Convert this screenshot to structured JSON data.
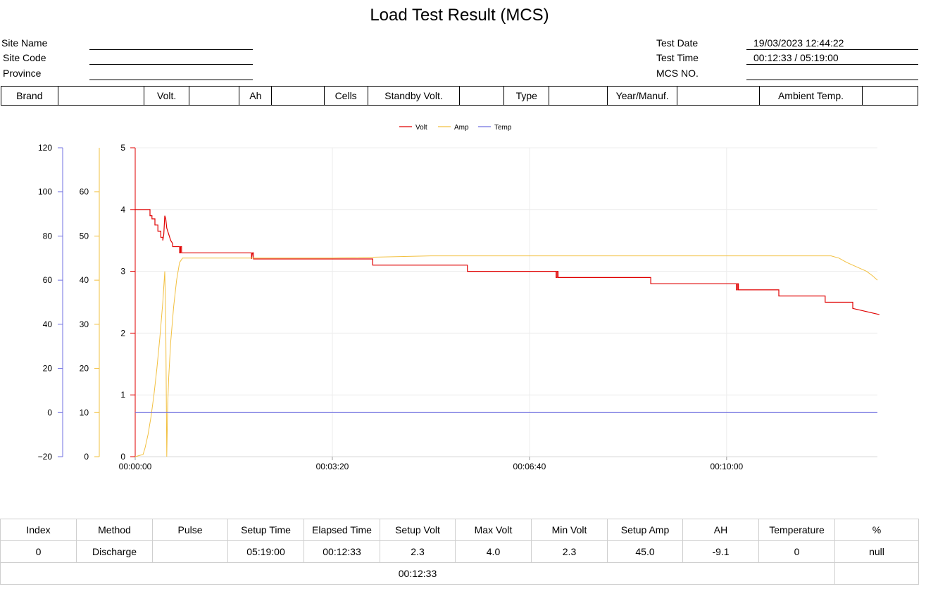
{
  "report": {
    "title": "Load Test Result (MCS)",
    "site_name_label": "Site Name",
    "site_code_label": "Site Code",
    "province_label": "Province",
    "site_name": "",
    "site_code": "",
    "province": "",
    "test_date_label": "Test Date",
    "test_time_label": "Test Time",
    "mcs_no_label": "MCS NO.",
    "test_date": "19/03/2023 12:44:22",
    "test_time": "00:12:33 / 05:19:00",
    "mcs_no": ""
  },
  "spec_table": {
    "brand_label": "Brand",
    "brand": "",
    "volt_label": "Volt.",
    "volt": "",
    "ah_label": "Ah",
    "ah": "",
    "cells_label": "Cells",
    "cells": "",
    "standby_label": "Standby Volt.",
    "standby": "",
    "type_label": "Type",
    "type": "",
    "year_label": "Year/Manuf.",
    "year": "",
    "ambient_label": "Ambient Temp.",
    "ambient": ""
  },
  "chart_data": {
    "type": "line",
    "legend": [
      "Volt",
      "Amp",
      "Temp"
    ],
    "legend_position": "top-center",
    "colors": {
      "Volt": "#e00000",
      "Amp": "#f2c040",
      "Temp": "#7070e0"
    },
    "x_ticks": [
      "00:00:00",
      "00:03:20",
      "00:06:40",
      "00:10:00"
    ],
    "x_range_seconds": [
      0,
      753
    ],
    "axes": {
      "volt": {
        "range": [
          0,
          5
        ],
        "ticks": [
          "0",
          "1",
          "2",
          "3",
          "4",
          "5"
        ]
      },
      "amp": {
        "range": [
          0,
          70
        ],
        "ticks": [
          "0",
          "10",
          "20",
          "30",
          "40",
          "50",
          "60"
        ]
      },
      "temp": {
        "range": [
          -20,
          120
        ],
        "ticks": [
          "−20",
          "0",
          "20",
          "40",
          "60",
          "80",
          "100",
          "120"
        ]
      }
    },
    "grid": true,
    "series": [
      {
        "name": "Volt",
        "x": [
          0,
          15,
          15,
          17,
          17,
          20,
          20,
          23,
          23,
          26,
          26,
          28,
          28,
          29,
          30,
          31,
          32,
          34,
          36,
          38,
          38,
          45,
          45,
          46,
          46,
          47,
          47,
          48,
          48,
          118,
          118,
          119,
          120,
          120,
          241,
          241,
          337,
          337,
          427,
          427,
          428,
          428,
          429,
          429,
          523,
          523,
          610,
          610,
          611,
          611,
          612,
          612,
          653,
          653,
          700,
          700,
          728,
          728,
          755
        ],
        "y": [
          4.0,
          4.0,
          3.9,
          3.9,
          3.85,
          3.85,
          3.75,
          3.75,
          3.65,
          3.65,
          3.55,
          3.55,
          3.5,
          3.6,
          3.9,
          3.85,
          3.7,
          3.6,
          3.5,
          3.45,
          3.4,
          3.4,
          3.3,
          3.3,
          3.4,
          3.4,
          3.3,
          3.3,
          3.3,
          3.3,
          3.2,
          3.3,
          3.3,
          3.2,
          3.2,
          3.1,
          3.1,
          3.0,
          3.0,
          2.9,
          2.9,
          3.0,
          3.0,
          2.9,
          2.9,
          2.8,
          2.8,
          2.7,
          2.7,
          2.8,
          2.8,
          2.7,
          2.7,
          2.6,
          2.6,
          2.5,
          2.5,
          2.4,
          2.3
        ]
      },
      {
        "name": "Amp",
        "x": [
          0,
          8,
          10,
          13,
          16,
          19,
          22,
          25,
          28,
          30,
          31,
          32,
          33,
          34,
          36,
          39,
          42,
          45,
          48,
          60,
          100,
          200,
          300,
          400,
          500,
          600,
          700,
          706,
          714,
          722,
          732,
          742,
          748,
          753
        ],
        "y": [
          0,
          0.5,
          2,
          5,
          9,
          14,
          20,
          27,
          35,
          42,
          30,
          0,
          12,
          18,
          26,
          34,
          40,
          44,
          45,
          45,
          45,
          45,
          45.5,
          45.5,
          45.5,
          45.5,
          45.5,
          45.5,
          45,
          44,
          43,
          42,
          41,
          40
        ]
      },
      {
        "name": "Temp",
        "x": [
          0,
          753
        ],
        "y": [
          0,
          0
        ]
      }
    ]
  },
  "results_table": {
    "headers": [
      "Index",
      "Method",
      "Pulse",
      "Setup Time",
      "Elapsed Time",
      "Setup Volt",
      "Max Volt",
      "Min Volt",
      "Setup Amp",
      "AH",
      "Temperature",
      "%"
    ],
    "row": [
      "0",
      "Discharge",
      "",
      "05:19:00",
      "00:12:33",
      "2.3",
      "4.0",
      "2.3",
      "45.0",
      "-9.1",
      "0",
      "null"
    ],
    "footer_elapsed": "00:12:33"
  }
}
